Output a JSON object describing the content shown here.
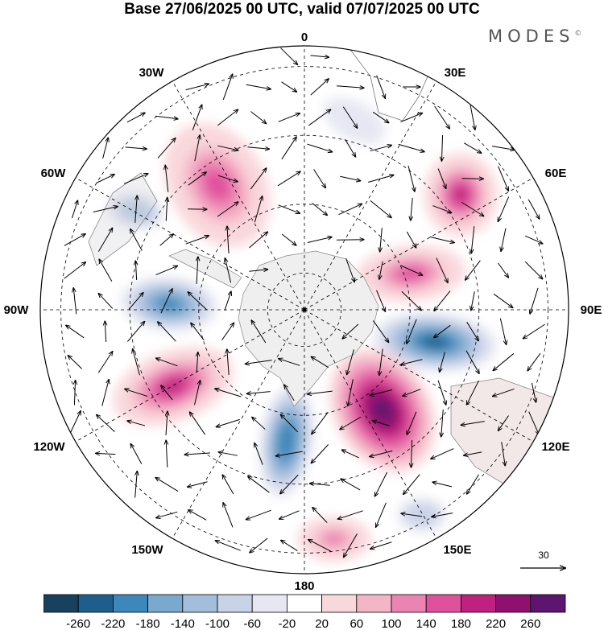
{
  "title": "Base 27/06/2025 00 UTC, valid 07/07/2025 00 UTC",
  "brand": {
    "name": "MODES",
    "mark": "©"
  },
  "map": {
    "projection": "south polar stereographic",
    "graticule": {
      "meridian_step_deg": 30,
      "parallel_circles": 4
    },
    "lon_labels": [
      {
        "id": "0",
        "text": "0"
      },
      {
        "id": "30E",
        "text": "30E"
      },
      {
        "id": "60E",
        "text": "60E"
      },
      {
        "id": "90E",
        "text": "90E"
      },
      {
        "id": "120E",
        "text": "120E"
      },
      {
        "id": "150E",
        "text": "150E"
      },
      {
        "id": "180",
        "text": "180"
      },
      {
        "id": "150W",
        "text": "150W"
      },
      {
        "id": "120W",
        "text": "120W"
      },
      {
        "id": "90W",
        "text": "90W"
      },
      {
        "id": "60W",
        "text": "60W"
      },
      {
        "id": "30W",
        "text": "30W"
      }
    ],
    "wind_reference": {
      "value": "30",
      "icon": "arrow-right-icon"
    },
    "colorbar": {
      "labels": [
        "-260",
        "-220",
        "-180",
        "-140",
        "-100",
        "-60",
        "-20",
        "20",
        "60",
        "100",
        "140",
        "180",
        "220",
        "260"
      ],
      "colors": [
        "#17415f",
        "#1d5e8c",
        "#3d88bb",
        "#7aa9cf",
        "#a3bddc",
        "#c9d3e8",
        "#e6e7f2",
        "#ffffff",
        "#f9d8dc",
        "#f4b5c7",
        "#ec84b3",
        "#e0519d",
        "#c0207f",
        "#8f1070",
        "#5e156f"
      ]
    },
    "anomaly_centers": [
      {
        "name": "atlantic-negative",
        "value": -60
      },
      {
        "name": "drake-passage-negative",
        "value": -140
      },
      {
        "name": "amundsen-negative",
        "value": -200
      },
      {
        "name": "indian-negative",
        "value": -260
      },
      {
        "name": "ross-sea-negative",
        "value": -220
      },
      {
        "name": "tasman-negative",
        "value": -100
      },
      {
        "name": "south-atlantic-positive",
        "value": 160
      },
      {
        "name": "indian-north-positive",
        "value": 180
      },
      {
        "name": "east-antarctic-positive",
        "value": 160
      },
      {
        "name": "pacific-positive",
        "value": 200
      },
      {
        "name": "australia-positive",
        "value": 260
      },
      {
        "name": "new-zealand-positive",
        "value": 100
      }
    ]
  }
}
